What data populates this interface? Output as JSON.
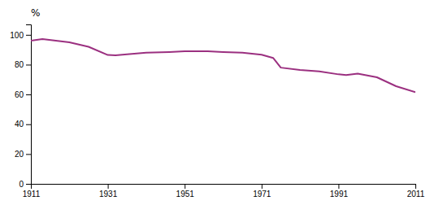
{
  "chart_data": {
    "type": "line",
    "y_label": "%",
    "x": [
      1911,
      1914,
      1921,
      1926,
      1931,
      1933,
      1936,
      1941,
      1947,
      1951,
      1954,
      1957,
      1961,
      1966,
      1971,
      1974,
      1976,
      1981,
      1986,
      1991,
      1993,
      1996,
      2001,
      2006,
      2011
    ],
    "values": [
      96.1,
      97.2,
      95.0,
      92.0,
      86.5,
      86.3,
      87.0,
      88.0,
      88.5,
      89.0,
      89.0,
      89.0,
      88.5,
      88.0,
      86.7,
      84.5,
      78.0,
      76.4,
      75.5,
      73.5,
      73.0,
      74.0,
      71.5,
      65.5,
      61.5
    ],
    "color": "#9B3080",
    "xlim": [
      1911,
      2011
    ],
    "xticks": [
      1911,
      1931,
      1951,
      1971,
      1991,
      2011
    ],
    "ylim": [
      0,
      107
    ],
    "yticks": [
      0,
      20,
      40,
      60,
      80,
      100
    ],
    "grid": false
  }
}
